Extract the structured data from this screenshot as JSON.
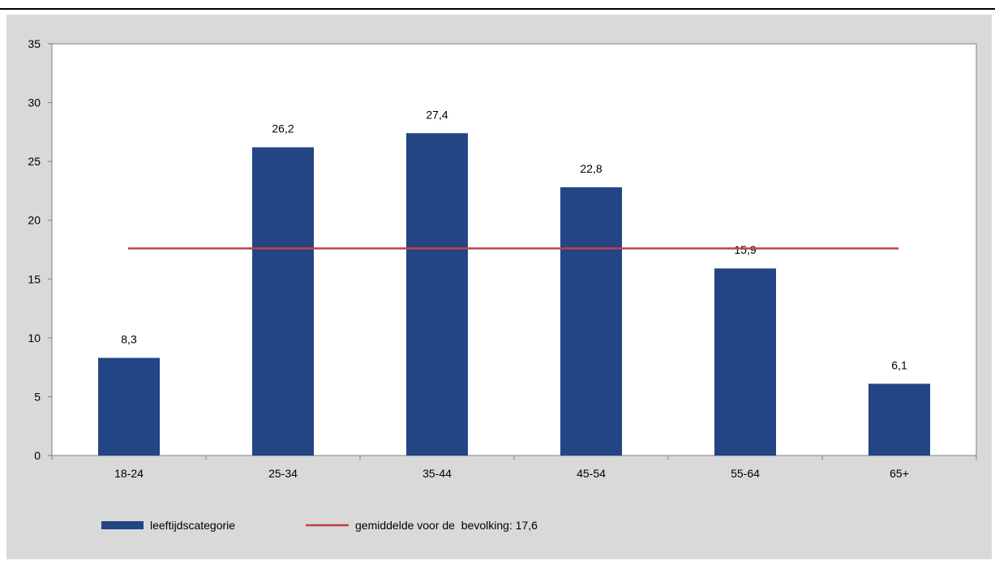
{
  "chart_data": {
    "type": "bar",
    "categories": [
      "18-24",
      "25-34",
      "35-44",
      "45-54",
      "55-64",
      "65+"
    ],
    "series": [
      {
        "name": "leeftijdscategorie",
        "values": [
          8.3,
          26.2,
          27.4,
          22.8,
          15.9,
          6.1
        ]
      }
    ],
    "data_labels": [
      "8,3",
      "26,2",
      "27,4",
      "22,8",
      "15,9",
      "6,1"
    ],
    "reference_line": {
      "name": "gemiddelde voor de  bevolking: 17,6",
      "value": 17.6
    },
    "y_ticks": [
      "0",
      "5",
      "10",
      "15",
      "20",
      "25",
      "30",
      "35"
    ],
    "ylim": [
      0,
      35
    ],
    "title": "",
    "xlabel": "",
    "ylabel": "",
    "grid": false,
    "legend_position": "bottom",
    "colors": {
      "bar": "#234585",
      "line": "#c0404a",
      "plot_bg": "#ffffff",
      "outer_bg": "#d9d9d9",
      "axis": "#808080"
    }
  }
}
